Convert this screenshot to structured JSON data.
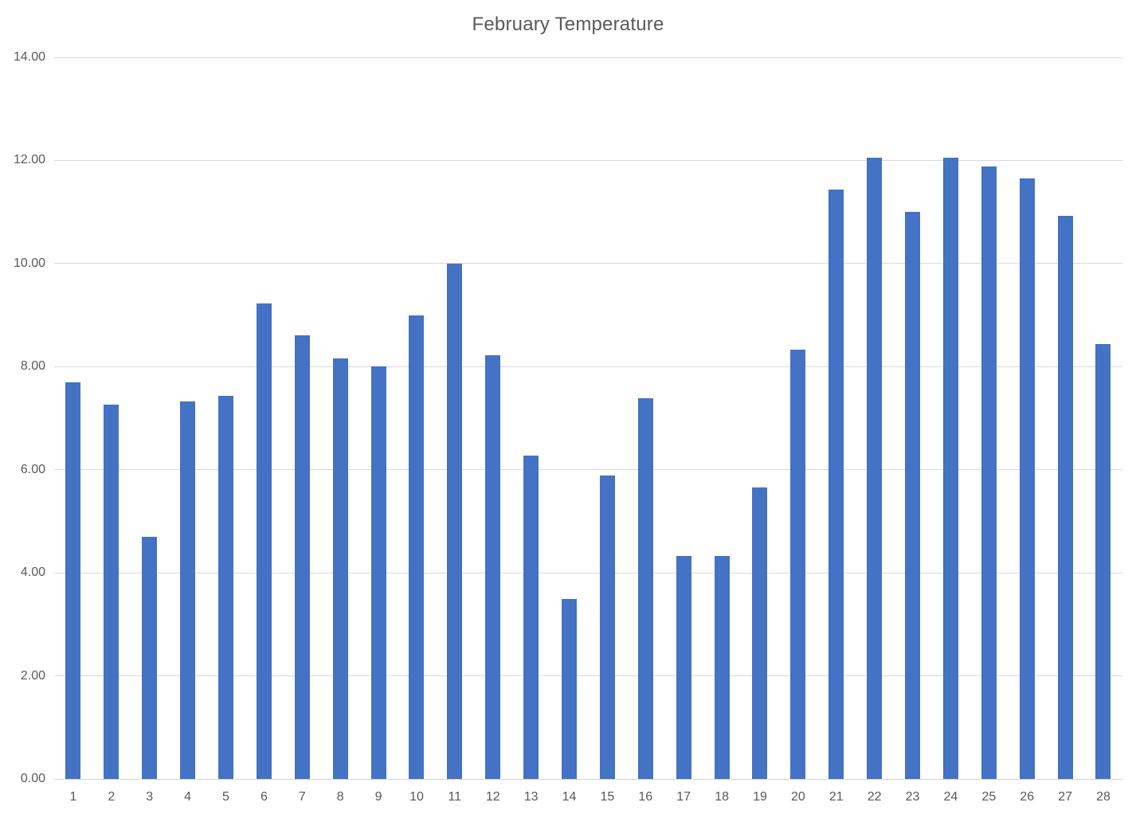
{
  "chart_data": {
    "type": "bar",
    "title": "February Temperature",
    "categories": [
      "1",
      "2",
      "3",
      "4",
      "5",
      "6",
      "7",
      "8",
      "9",
      "10",
      "11",
      "12",
      "13",
      "14",
      "15",
      "16",
      "17",
      "18",
      "19",
      "20",
      "21",
      "22",
      "23",
      "24",
      "25",
      "26",
      "27",
      "28"
    ],
    "values": [
      7.7,
      7.27,
      4.7,
      7.32,
      7.43,
      9.22,
      8.61,
      8.16,
      8.0,
      9.0,
      10.0,
      8.22,
      6.27,
      3.5,
      5.89,
      7.39,
      4.32,
      4.32,
      5.66,
      8.33,
      11.43,
      12.05,
      11.0,
      12.05,
      11.88,
      11.65,
      10.93,
      8.43
    ],
    "xlabel": "",
    "ylabel": "",
    "ylim": [
      0,
      14
    ],
    "ytick_step": 2,
    "ytick_labels": [
      "0.00",
      "2.00",
      "4.00",
      "6.00",
      "8.00",
      "10.00",
      "12.00",
      "14.00"
    ],
    "grid": true,
    "legend_position": "none",
    "colors": {
      "bar": "#4472c4",
      "gridline": "#d9d9d9",
      "axis_line": "#d6d6d6",
      "tick_label": "#595959",
      "title": "#595959"
    }
  }
}
